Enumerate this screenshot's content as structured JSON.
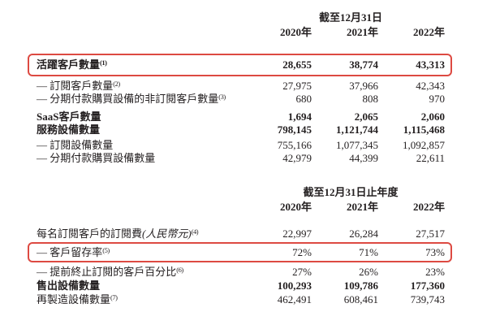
{
  "colors": {
    "highlight_box_red": "#dd4a42",
    "text": "#231f20",
    "background": "#ffffff"
  },
  "table1": {
    "period": "截至12月31日",
    "years": [
      "2020年",
      "2021年",
      "2022年"
    ],
    "rows": [
      {
        "label": "活躍客戶數量",
        "sup": "(1)",
        "values": [
          "28,655",
          "38,774",
          "43,313"
        ]
      },
      {
        "label": "— 訂閱客戶數量",
        "sup": "(2)",
        "values": [
          "27,975",
          "37,966",
          "42,343"
        ]
      },
      {
        "label": "— 分期付款購買設備的非訂閱客戶數量",
        "sup": "(3)",
        "values": [
          "680",
          "808",
          "970"
        ]
      },
      {
        "label": "SaaS客戶數量",
        "sup": "",
        "values": [
          "1,694",
          "2,065",
          "2,060"
        ]
      },
      {
        "label": "服務設備數量",
        "sup": "",
        "values": [
          "798,145",
          "1,121,744",
          "1,115,468"
        ]
      },
      {
        "label": "— 訂閱設備數量",
        "sup": "",
        "values": [
          "755,166",
          "1,077,345",
          "1,092,857"
        ]
      },
      {
        "label": "— 分期付款購買設備數量",
        "sup": "",
        "values": [
          "42,979",
          "44,399",
          "22,611"
        ]
      }
    ]
  },
  "table2": {
    "period": "截至12月31日止年度",
    "years": [
      "2020年",
      "2021年",
      "2022年"
    ],
    "rows": [
      {
        "label": "每名訂閱客戶的訂閱費",
        "label_paren": "(人民幣元)",
        "sup": "(4)",
        "values": [
          "22,997",
          "26,284",
          "27,517"
        ]
      },
      {
        "label": "— 客戶留存率",
        "sup": "(5)",
        "values": [
          "72%",
          "71%",
          "73%"
        ]
      },
      {
        "label": "— 提前終止訂閱的客戶百分比",
        "sup": "(6)",
        "values": [
          "27%",
          "26%",
          "23%"
        ]
      },
      {
        "label": "售出設備數量",
        "sup": "",
        "values": [
          "100,293",
          "109,786",
          "177,360"
        ]
      },
      {
        "label": "再製造設備數量",
        "sup": "(7)",
        "values": [
          "462,491",
          "608,461",
          "739,743"
        ]
      }
    ]
  }
}
